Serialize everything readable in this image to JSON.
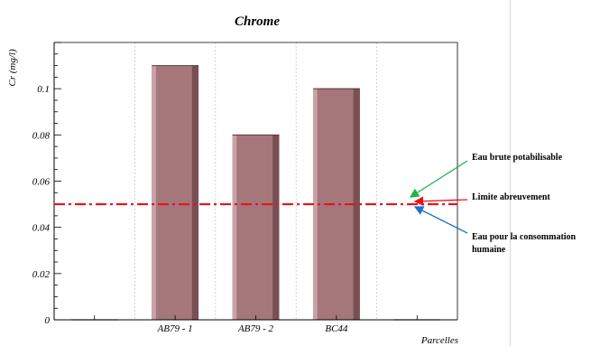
{
  "chart_data": {
    "type": "bar",
    "title": "Chrome",
    "xlabel": "Parcelles",
    "ylabel": "Cr (mg/l)",
    "categories": [
      "",
      "AB79 - 1",
      "AB79 - 2",
      "BC44",
      ""
    ],
    "values": [
      0,
      0.11,
      0.08,
      0.1,
      0
    ],
    "ylim": [
      0,
      0.12
    ],
    "yticks": [
      0,
      0.02,
      0.04,
      0.06,
      0.08,
      0.1
    ],
    "ytick_labels": [
      "0",
      "0.02",
      "0.04",
      "0.06",
      "0.08",
      "0.1"
    ],
    "grid": "x-only",
    "threshold": {
      "value": 0.05,
      "style": "dash-dot",
      "color": "#e8121b"
    },
    "bar_color": "#a5777a",
    "annotations": [
      {
        "text": "Eau brute potabilisable",
        "arrow_color": "#19b64b"
      },
      {
        "text": "Limite abreuvement",
        "arrow_color": "#e8121b"
      },
      {
        "text": "Eau pour la consommation humaine",
        "arrow_color": "#1a73c7"
      }
    ]
  }
}
